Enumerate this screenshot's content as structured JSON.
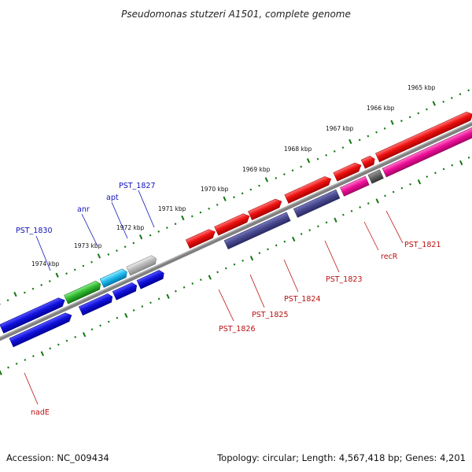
{
  "title": "Pseudomonas stutzeri A1501, complete genome",
  "footer": {
    "accession": "Accession: NC_009434",
    "summary": "Topology: circular; Length: 4,567,418 bp; Genes: 4,201"
  },
  "colors": {
    "forward": "#ee1111",
    "reverse_blue": "#1111dd",
    "navy": "#4a4a90",
    "pink": "#ee1199",
    "green": "#33bb33",
    "cyan": "#22bbee",
    "gray": "#bbbbbb",
    "darkgray": "#666666",
    "backbone": "#808080",
    "ticks": "#117711",
    "label_blue": "#1111bb",
    "label_red": "#bb1111"
  },
  "tick_labels": [
    "1965 kbp",
    "1966 kbp",
    "1967 kbp",
    "1968 kbp",
    "1969 kbp",
    "1970 kbp",
    "1971 kbp",
    "1972 kbp",
    "1973 kbp",
    "1974 kbp"
  ],
  "gene_labels": [
    {
      "id": "PST_1830",
      "text": "PST_1830",
      "color": "label_blue"
    },
    {
      "id": "anr",
      "text": "anr",
      "color": "label_blue"
    },
    {
      "id": "apt",
      "text": "apt",
      "color": "label_blue"
    },
    {
      "id": "PST_1827",
      "text": "PST_1827",
      "color": "label_blue"
    },
    {
      "id": "PST_1826",
      "text": "PST_1826",
      "color": "label_red"
    },
    {
      "id": "PST_1825",
      "text": "PST_1825",
      "color": "label_red"
    },
    {
      "id": "PST_1824",
      "text": "PST_1824",
      "color": "label_red"
    },
    {
      "id": "PST_1823",
      "text": "PST_1823",
      "color": "label_red"
    },
    {
      "id": "recR",
      "text": "recR",
      "color": "label_red"
    },
    {
      "id": "PST_1821",
      "text": "PST_1821",
      "color": "label_red"
    },
    {
      "id": "nadE",
      "text": "nadE",
      "color": "label_red"
    }
  ]
}
